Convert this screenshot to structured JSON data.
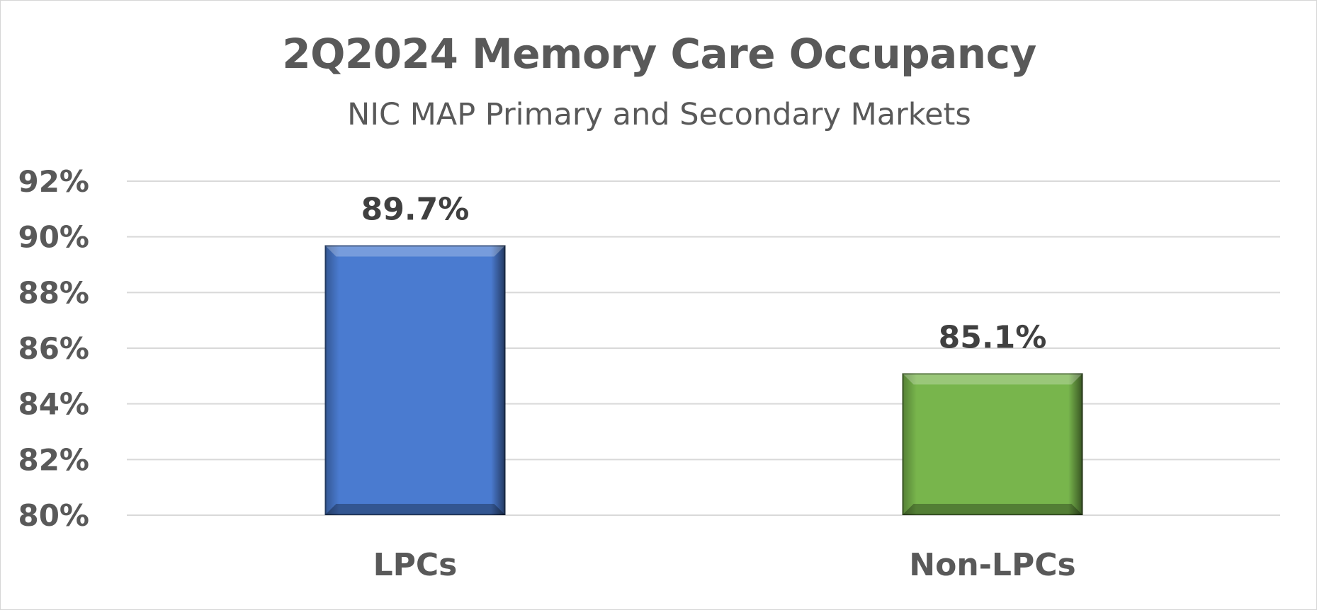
{
  "chart_data": {
    "type": "bar",
    "title": "2Q2024 Memory Care Occupancy",
    "subtitle": "NIC MAP Primary and Secondary Markets",
    "categories": [
      "LPCs",
      "Non-LPCs"
    ],
    "values": [
      89.7,
      85.1
    ],
    "data_labels": [
      "89.7%",
      "85.1%"
    ],
    "ylim": [
      80,
      92
    ],
    "yticks": [
      80,
      82,
      84,
      86,
      88,
      90,
      92
    ],
    "ytick_labels": [
      "80%",
      "82%",
      "84%",
      "86%",
      "88%",
      "90%",
      "92%"
    ],
    "xlabel": "",
    "ylabel": "",
    "grid": true,
    "legend": "none",
    "colors": [
      "#4a7bd0",
      "#78b54c"
    ]
  }
}
